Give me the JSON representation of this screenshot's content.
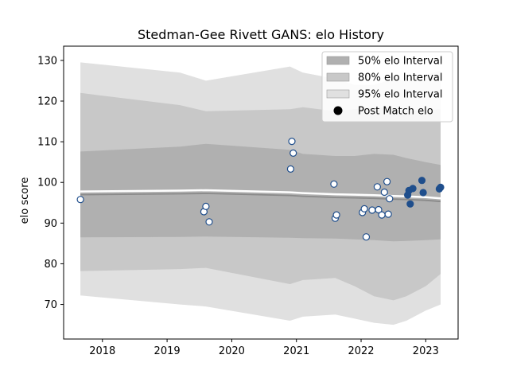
{
  "chart_data": {
    "type": "area",
    "title": "Stedman-Gee Rivett GANS: elo History",
    "xlabel": "",
    "ylabel": "elo score",
    "xlim": [
      2017.4,
      2023.5
    ],
    "ylim": [
      61.5,
      133.5
    ],
    "x_ticks": [
      2018,
      2019,
      2020,
      2021,
      2022,
      2023
    ],
    "y_ticks": [
      70,
      80,
      90,
      100,
      110,
      120,
      130
    ],
    "grid": false,
    "legend_position": "top-right",
    "legend": [
      {
        "label": "50% elo Interval",
        "color": "#b0b0b0"
      },
      {
        "label": "80% elo Interval",
        "color": "#c8c8c8"
      },
      {
        "label": "95% elo Interval",
        "color": "#e0e0e0"
      },
      {
        "label": "Post Match elo",
        "color": "#000000"
      }
    ],
    "bands": {
      "x": [
        2017.66,
        2019.2,
        2019.6,
        2020.9,
        2021.1,
        2021.6,
        2021.9,
        2022.2,
        2022.5,
        2022.7,
        2023.0,
        2023.23
      ],
      "mean": [
        97.0,
        97.2,
        97.3,
        96.8,
        96.6,
        96.3,
        96.2,
        96.1,
        95.9,
        95.8,
        95.6,
        95.3
      ],
      "q50": [
        [
          86.5,
          107.6
        ],
        [
          86.6,
          108.8
        ],
        [
          86.7,
          109.5
        ],
        [
          86.4,
          108.0
        ],
        [
          86.3,
          107.0
        ],
        [
          86.2,
          106.5
        ],
        [
          86.0,
          106.5
        ],
        [
          85.8,
          107.0
        ],
        [
          85.5,
          106.8
        ],
        [
          85.6,
          106.0
        ],
        [
          85.8,
          105.0
        ],
        [
          86.0,
          104.3
        ]
      ],
      "q80": [
        [
          78.2,
          122.0
        ],
        [
          78.7,
          119.0
        ],
        [
          79.0,
          117.5
        ],
        [
          75.0,
          118.0
        ],
        [
          76.0,
          118.5
        ],
        [
          76.5,
          117.5
        ],
        [
          74.5,
          118.0
        ],
        [
          72.0,
          118.5
        ],
        [
          71.0,
          118.0
        ],
        [
          72.0,
          117.5
        ],
        [
          74.5,
          117.8
        ],
        [
          77.5,
          118.0
        ]
      ],
      "q95": [
        [
          72.2,
          129.5
        ],
        [
          70.0,
          127.0
        ],
        [
          69.5,
          125.0
        ],
        [
          66.0,
          128.5
        ],
        [
          67.0,
          127.0
        ],
        [
          67.5,
          125.5
        ],
        [
          66.5,
          124.0
        ],
        [
          65.5,
          124.0
        ],
        [
          65.0,
          125.5
        ],
        [
          66.0,
          125.0
        ],
        [
          68.5,
          126.5
        ],
        [
          70.0,
          127.5
        ]
      ]
    },
    "series": [
      {
        "x": [
          2017.66,
          2019.57,
          2019.6,
          2019.65,
          2020.91,
          2020.93,
          2020.95,
          2021.58,
          2021.6,
          2021.62,
          2022.02,
          2022.05,
          2022.08,
          2022.17,
          2022.25,
          2022.27,
          2022.32,
          2022.36,
          2022.4,
          2022.42,
          2022.44,
          2022.72,
          2022.74,
          2022.76,
          2022.8,
          2022.94,
          2022.96,
          2023.21,
          2023.23
        ],
        "y": [
          95.8,
          92.8,
          94.1,
          90.3,
          103.3,
          110.1,
          107.2,
          99.6,
          91.2,
          92.0,
          92.6,
          93.5,
          86.6,
          93.2,
          98.9,
          93.3,
          92.0,
          97.6,
          100.2,
          92.2,
          96.0,
          96.9,
          98.0,
          94.7,
          98.5,
          100.5,
          97.5,
          98.4,
          98.8
        ]
      }
    ]
  }
}
